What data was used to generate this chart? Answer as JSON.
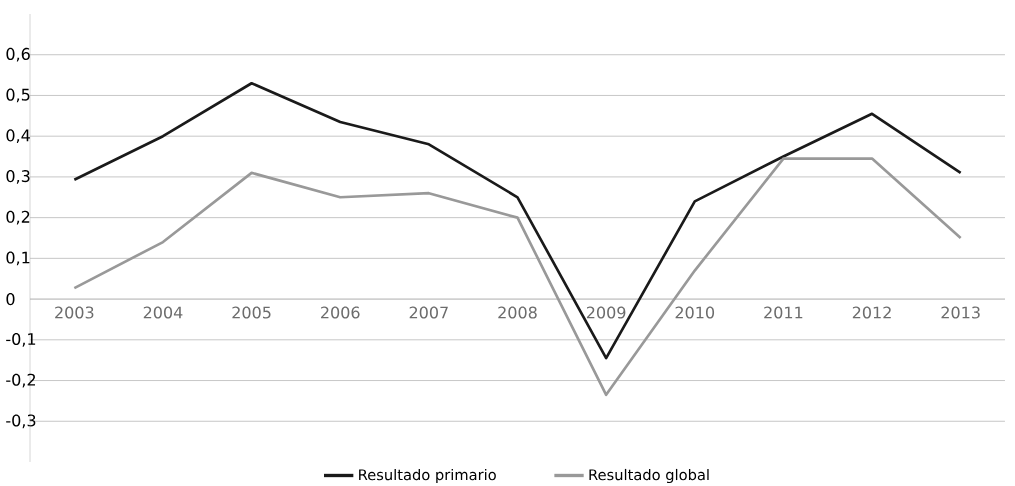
{
  "chart_data": {
    "type": "line",
    "categories": [
      "2003",
      "2004",
      "2005",
      "2006",
      "2007",
      "2008",
      "2009",
      "2010",
      "2011",
      "2012",
      "2013"
    ],
    "series": [
      {
        "name": "Resultado primario",
        "color": "#1a1a1a",
        "values": [
          0.293,
          0.4,
          0.53,
          0.435,
          0.38,
          0.25,
          -0.145,
          0.24,
          0.35,
          0.455,
          0.31
        ]
      },
      {
        "name": "Resultado global",
        "color": "#999999",
        "values": [
          0.027,
          0.14,
          0.31,
          0.25,
          0.26,
          0.2,
          -0.235,
          0.07,
          0.345,
          0.345,
          0.15
        ]
      }
    ],
    "ylim": [
      -0.4,
      0.7
    ],
    "yticks": [
      {
        "value": -0.3,
        "label": "-0,3"
      },
      {
        "value": -0.2,
        "label": "-0,2"
      },
      {
        "value": -0.1,
        "label": "-0,1"
      },
      {
        "value": 0,
        "label": "0"
      },
      {
        "value": 0.1,
        "label": "0,1"
      },
      {
        "value": 0.2,
        "label": "0,2"
      },
      {
        "value": 0.3,
        "label": "0,3"
      },
      {
        "value": 0.4,
        "label": "0,4"
      },
      {
        "value": 0.5,
        "label": "0,5"
      },
      {
        "value": 0.6,
        "label": "0,6"
      }
    ],
    "grid": "y",
    "legend": "bottom",
    "marker": "none",
    "line_style": "solid"
  }
}
